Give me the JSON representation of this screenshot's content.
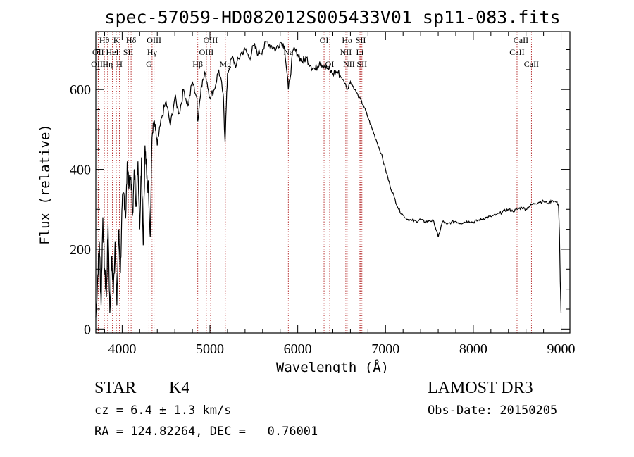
{
  "chart_data": {
    "type": "line",
    "title": "spec-57059-HD082012S005433V01_sp11-083.fits",
    "xlabel": "Wavelength (Å)",
    "ylabel": "Flux (relative)",
    "xlim": [
      3700,
      9100
    ],
    "ylim": [
      -10,
      745
    ],
    "xticks": [
      4000,
      5000,
      6000,
      7000,
      8000,
      9000
    ],
    "yticks": [
      0,
      200,
      400,
      600
    ],
    "grid": false,
    "series": [
      {
        "x": [
          3700,
          3720,
          3740,
          3760,
          3780,
          3800,
          3820,
          3840,
          3860,
          3880,
          3900,
          3920,
          3940,
          3960,
          3980,
          4000,
          4020,
          4040,
          4060,
          4080,
          4100,
          4120,
          4140,
          4160,
          4180,
          4200,
          4220,
          4240,
          4260,
          4280,
          4300,
          4320,
          4340,
          4360,
          4380,
          4400,
          4450,
          4500,
          4550,
          4600,
          4650,
          4700,
          4750,
          4800,
          4850,
          4861,
          4900,
          4950,
          5000,
          5050,
          5100,
          5150,
          5172,
          5200,
          5250,
          5300,
          5350,
          5400,
          5450,
          5500,
          5550,
          5600,
          5650,
          5700,
          5750,
          5800,
          5850,
          5893,
          5950,
          6000,
          6050,
          6100,
          6150,
          6200,
          6250,
          6300,
          6350,
          6400,
          6450,
          6500,
          6550,
          6563,
          6600,
          6650,
          6700,
          6750,
          6800,
          6850,
          6900,
          6950,
          7000,
          7050,
          7100,
          7150,
          7200,
          7250,
          7300,
          7350,
          7400,
          7450,
          7500,
          7550,
          7600,
          7650,
          7700,
          7750,
          7800,
          7850,
          7900,
          7950,
          8000,
          8050,
          8100,
          8150,
          8200,
          8250,
          8300,
          8350,
          8400,
          8450,
          8500,
          8550,
          8600,
          8650,
          8700,
          8750,
          8800,
          8850,
          8900,
          8950,
          8970,
          8980,
          8990,
          9000
        ],
        "y": [
          30,
          120,
          220,
          60,
          280,
          150,
          80,
          260,
          40,
          180,
          90,
          220,
          60,
          250,
          140,
          310,
          340,
          280,
          420,
          360,
          380,
          290,
          400,
          310,
          420,
          250,
          430,
          210,
          460,
          380,
          350,
          230,
          480,
          520,
          500,
          460,
          530,
          570,
          510,
          580,
          540,
          600,
          560,
          620,
          580,
          520,
          610,
          640,
          580,
          600,
          650,
          590,
          470,
          640,
          680,
          660,
          690,
          700,
          680,
          710,
          690,
          700,
          720,
          710,
          700,
          720,
          710,
          600,
          700,
          690,
          670,
          680,
          660,
          650,
          670,
          660,
          650,
          640,
          645,
          630,
          610,
          600,
          620,
          600,
          580,
          560,
          530,
          500,
          470,
          440,
          400,
          360,
          330,
          300,
          285,
          275,
          272,
          270,
          275,
          268,
          272,
          270,
          230,
          270,
          262,
          268,
          270,
          265,
          268,
          270,
          268,
          272,
          275,
          280,
          282,
          285,
          290,
          295,
          300,
          295,
          300,
          305,
          300,
          310,
          315,
          318,
          320,
          315,
          322,
          318,
          310,
          250,
          120,
          40
        ]
      }
    ],
    "spectral_lines": [
      {
        "label": "Hθ",
        "x": 3797,
        "row": 1
      },
      {
        "label": "OII",
        "x": 3727,
        "row": 2
      },
      {
        "label": "OIII",
        "x": 3728,
        "row": 3
      },
      {
        "label": "Hη",
        "x": 3835,
        "row": 3
      },
      {
        "label": "HeI",
        "x": 3889,
        "row": 2
      },
      {
        "label": "K",
        "x": 3934,
        "row": 1
      },
      {
        "label": "SII",
        "x": 4070,
        "row": 2
      },
      {
        "label": "H",
        "x": 3969,
        "row": 3
      },
      {
        "label": "Hδ",
        "x": 4102,
        "row": 1
      },
      {
        "label": "OIII",
        "x": 4363,
        "row": 1
      },
      {
        "label": "Hγ",
        "x": 4341,
        "row": 2
      },
      {
        "label": "G",
        "x": 4305,
        "row": 3
      },
      {
        "label": "OIII",
        "x": 5007,
        "row": 1
      },
      {
        "label": "OIII",
        "x": 4959,
        "row": 2
      },
      {
        "label": "Hβ",
        "x": 4861,
        "row": 3
      },
      {
        "label": "Mg",
        "x": 5175,
        "row": 3
      },
      {
        "label": "Na",
        "x": 5893,
        "row": 2
      },
      {
        "label": "OI",
        "x": 6300,
        "row": 1
      },
      {
        "label": "OI",
        "x": 6364,
        "row": 3
      },
      {
        "label": "Hα",
        "x": 6563,
        "row": 1
      },
      {
        "label": "SII",
        "x": 6717,
        "row": 1
      },
      {
        "label": "NII",
        "x": 6548,
        "row": 2
      },
      {
        "label": "Li",
        "x": 6708,
        "row": 2
      },
      {
        "label": "NII",
        "x": 6584,
        "row": 3
      },
      {
        "label": "SII",
        "x": 6731,
        "row": 3
      },
      {
        "label": "CaII",
        "x": 8542,
        "row": 1
      },
      {
        "label": "CaII",
        "x": 8498,
        "row": 2
      },
      {
        "label": "CaII",
        "x": 8662,
        "row": 3
      }
    ]
  },
  "footer": {
    "object_type": "STAR",
    "subclass": "K4",
    "cz": "cz = 6.4 ± 1.3 km/s",
    "coords": "RA = 124.82264, DEC =   0.76001",
    "survey": "LAMOST DR3",
    "obs_date": "Obs-Date: 20150205"
  },
  "colors": {
    "spectrum": "#000000",
    "line_markers": "#b22222",
    "axes": "#000000"
  }
}
